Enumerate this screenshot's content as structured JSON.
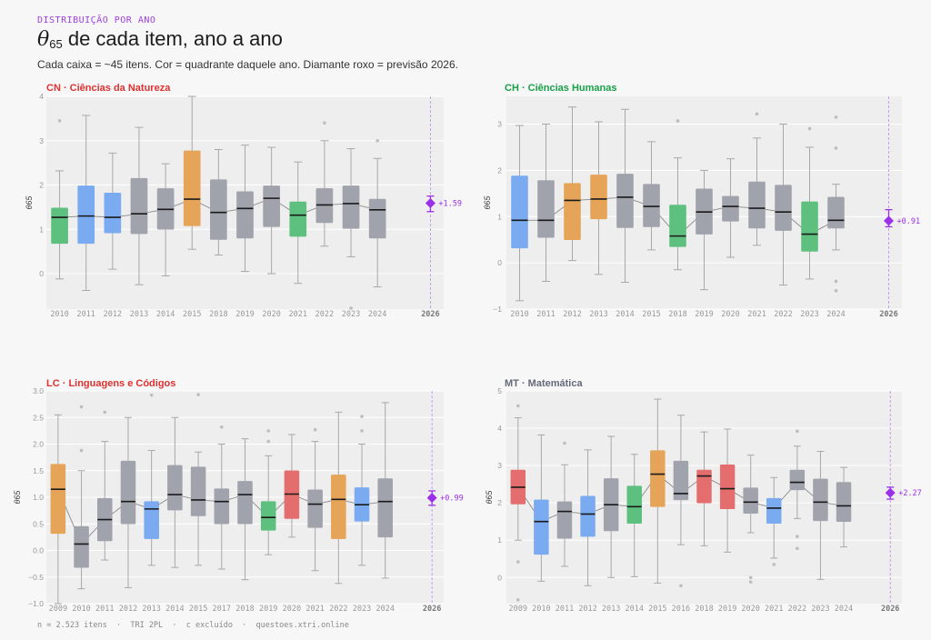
{
  "header": {
    "kicker": "DISTRIBUIÇÃO POR ANO",
    "title_symbol": "θ",
    "title_sub": "65",
    "title_rest": " de cada item, ano a ano",
    "subtitle": "Cada caixa = ~45 itens. Cor = quadrante daquele ano. Diamante roxo = previsão 2026."
  },
  "footer": "n = 2.523 itens  ·  TRI 2PL  ·  c excluído  ·  questoes.xtri.online",
  "colors": {
    "blue": "#7aaaf0",
    "orange": "#e5a458",
    "green": "#5ec07e",
    "red": "#e46e6e",
    "gray": "#a0a2ac",
    "prediction": "#9b30e8",
    "median": "#1a1a1a",
    "trend": "#8a8a8a"
  },
  "chart_data": [
    {
      "id": "cn",
      "type": "box",
      "title": "CN · Ciências da Natureza",
      "title_color": "#e03030",
      "ylabel": "θ65",
      "ylim": [
        -0.8,
        4.0
      ],
      "yticks": [
        0,
        1,
        2,
        3,
        4
      ],
      "ytick_labels": [
        "0",
        "1",
        "2",
        "3",
        "4"
      ],
      "prediction": {
        "x": "2026",
        "value": 1.59,
        "low": 1.4,
        "high": 1.75,
        "label": "+1.59"
      },
      "boxes": [
        {
          "x": "2010",
          "color": "green",
          "min": -0.12,
          "q1": 0.68,
          "median": 1.27,
          "q3": 1.48,
          "max": 2.32,
          "outliers": [
            3.45
          ]
        },
        {
          "x": "2011",
          "color": "blue",
          "min": -0.38,
          "q1": 0.68,
          "median": 1.3,
          "q3": 1.98,
          "max": 3.57,
          "outliers": []
        },
        {
          "x": "2012",
          "color": "blue",
          "min": 0.1,
          "q1": 0.92,
          "median": 1.27,
          "q3": 1.82,
          "max": 2.72,
          "outliers": []
        },
        {
          "x": "2013",
          "color": "gray",
          "min": -0.25,
          "q1": 0.9,
          "median": 1.35,
          "q3": 2.15,
          "max": 3.3,
          "outliers": []
        },
        {
          "x": "2014",
          "color": "gray",
          "min": -0.05,
          "q1": 1.0,
          "median": 1.45,
          "q3": 1.92,
          "max": 2.48,
          "outliers": []
        },
        {
          "x": "2015",
          "color": "orange",
          "min": 0.55,
          "q1": 1.08,
          "median": 1.68,
          "q3": 2.77,
          "max": 4.0,
          "outliers": []
        },
        {
          "x": "2018",
          "color": "gray",
          "min": 0.42,
          "q1": 0.77,
          "median": 1.38,
          "q3": 2.12,
          "max": 2.8,
          "outliers": []
        },
        {
          "x": "2019",
          "color": "gray",
          "min": 0.05,
          "q1": 0.8,
          "median": 1.47,
          "q3": 1.85,
          "max": 2.9,
          "outliers": []
        },
        {
          "x": "2020",
          "color": "gray",
          "min": 0.0,
          "q1": 1.06,
          "median": 1.7,
          "q3": 1.98,
          "max": 2.85,
          "outliers": []
        },
        {
          "x": "2021",
          "color": "green",
          "min": -0.22,
          "q1": 0.84,
          "median": 1.32,
          "q3": 1.62,
          "max": 2.52,
          "outliers": []
        },
        {
          "x": "2022",
          "color": "gray",
          "min": 0.62,
          "q1": 1.15,
          "median": 1.55,
          "q3": 1.92,
          "max": 3.0,
          "outliers": [
            3.4
          ]
        },
        {
          "x": "2023",
          "color": "gray",
          "min": 0.38,
          "q1": 1.02,
          "median": 1.58,
          "q3": 1.98,
          "max": 2.82,
          "outliers": [
            -0.78
          ]
        },
        {
          "x": "2024",
          "color": "gray",
          "min": -0.3,
          "q1": 0.8,
          "median": 1.44,
          "q3": 1.68,
          "max": 2.6,
          "outliers": [
            3.0
          ]
        }
      ]
    },
    {
      "id": "ch",
      "type": "box",
      "title": "CH · Ciências Humanas",
      "title_color": "#17a046",
      "ylabel": "θ65",
      "ylim": [
        -1.0,
        3.6
      ],
      "yticks": [
        -1,
        0,
        1,
        2,
        3
      ],
      "ytick_labels": [
        "−1",
        "0",
        "1",
        "2",
        "3"
      ],
      "prediction": {
        "x": "2026",
        "value": 0.91,
        "low": 0.78,
        "high": 1.15,
        "label": "+0.91"
      },
      "boxes": [
        {
          "x": "2010",
          "color": "blue",
          "min": -0.82,
          "q1": 0.32,
          "median": 0.92,
          "q3": 1.88,
          "max": 2.97,
          "outliers": []
        },
        {
          "x": "2011",
          "color": "gray",
          "min": -0.4,
          "q1": 0.55,
          "median": 0.92,
          "q3": 1.78,
          "max": 3.0,
          "outliers": []
        },
        {
          "x": "2012",
          "color": "orange",
          "min": 0.05,
          "q1": 0.5,
          "median": 1.35,
          "q3": 1.72,
          "max": 3.37,
          "outliers": []
        },
        {
          "x": "2013",
          "color": "orange",
          "min": -0.25,
          "q1": 0.95,
          "median": 1.38,
          "q3": 1.9,
          "max": 3.05,
          "outliers": []
        },
        {
          "x": "2014",
          "color": "gray",
          "min": -0.42,
          "q1": 0.76,
          "median": 1.42,
          "q3": 1.92,
          "max": 3.32,
          "outliers": []
        },
        {
          "x": "2015",
          "color": "gray",
          "min": 0.28,
          "q1": 0.78,
          "median": 1.22,
          "q3": 1.7,
          "max": 2.62,
          "outliers": []
        },
        {
          "x": "2018",
          "color": "green",
          "min": -0.15,
          "q1": 0.35,
          "median": 0.58,
          "q3": 1.25,
          "max": 2.27,
          "outliers": [
            3.07
          ]
        },
        {
          "x": "2019",
          "color": "gray",
          "min": -0.58,
          "q1": 0.62,
          "median": 1.1,
          "q3": 1.6,
          "max": 2.0,
          "outliers": []
        },
        {
          "x": "2020",
          "color": "gray",
          "min": 0.12,
          "q1": 0.9,
          "median": 1.22,
          "q3": 1.44,
          "max": 2.25,
          "outliers": []
        },
        {
          "x": "2021",
          "color": "gray",
          "min": 0.38,
          "q1": 0.75,
          "median": 1.18,
          "q3": 1.75,
          "max": 2.7,
          "outliers": [
            3.22
          ]
        },
        {
          "x": "2022",
          "color": "gray",
          "min": -0.48,
          "q1": 0.7,
          "median": 1.1,
          "q3": 1.68,
          "max": 3.0,
          "outliers": []
        },
        {
          "x": "2023",
          "color": "green",
          "min": -0.35,
          "q1": 0.25,
          "median": 0.62,
          "q3": 1.32,
          "max": 2.5,
          "outliers": [
            2.9
          ]
        },
        {
          "x": "2024",
          "color": "gray",
          "min": 0.28,
          "q1": 0.75,
          "median": 0.92,
          "q3": 1.42,
          "max": 1.7,
          "outliers": [
            3.15,
            2.48,
            -0.4,
            -0.6
          ]
        }
      ]
    },
    {
      "id": "lc",
      "type": "box",
      "title": "LC · Linguagens e Códigos",
      "title_color": "#e03030",
      "ylabel": "θ65",
      "ylim": [
        -1.0,
        3.0
      ],
      "yticks": [
        -1.0,
        -0.5,
        0.0,
        0.5,
        1.0,
        1.5,
        2.0,
        2.5,
        3.0
      ],
      "ytick_labels": [
        "−1.0",
        "−0.5",
        "0.0",
        "0.5",
        "1.0",
        "1.5",
        "2.0",
        "2.5",
        "3.0"
      ],
      "prediction": {
        "x": "2026",
        "value": 0.99,
        "low": 0.85,
        "high": 1.12,
        "label": "+0.99"
      },
      "boxes": [
        {
          "x": "2009",
          "color": "orange",
          "min": -1.0,
          "q1": 0.32,
          "median": 1.15,
          "q3": 1.62,
          "max": 2.55,
          "outliers": []
        },
        {
          "x": "2010",
          "color": "gray",
          "min": -0.72,
          "q1": -0.32,
          "median": 0.12,
          "q3": 0.45,
          "max": 1.5,
          "outliers": [
            2.7,
            1.88
          ]
        },
        {
          "x": "2011",
          "color": "gray",
          "min": -0.18,
          "q1": 0.18,
          "median": 0.58,
          "q3": 0.98,
          "max": 2.05,
          "outliers": [
            2.6
          ]
        },
        {
          "x": "2012",
          "color": "gray",
          "min": -0.7,
          "q1": 0.5,
          "median": 0.92,
          "q3": 1.68,
          "max": 2.5,
          "outliers": []
        },
        {
          "x": "2013",
          "color": "blue",
          "min": -0.28,
          "q1": 0.22,
          "median": 0.78,
          "q3": 0.92,
          "max": 1.88,
          "outliers": [
            2.92
          ]
        },
        {
          "x": "2014",
          "color": "gray",
          "min": -0.32,
          "q1": 0.76,
          "median": 1.05,
          "q3": 1.6,
          "max": 2.5,
          "outliers": []
        },
        {
          "x": "2015",
          "color": "gray",
          "min": -0.28,
          "q1": 0.65,
          "median": 0.95,
          "q3": 1.57,
          "max": 1.85,
          "outliers": [
            2.93
          ]
        },
        {
          "x": "2017",
          "color": "gray",
          "min": -0.35,
          "q1": 0.5,
          "median": 0.92,
          "q3": 1.16,
          "max": 2.0,
          "outliers": [
            2.32
          ]
        },
        {
          "x": "2018",
          "color": "gray",
          "min": -0.55,
          "q1": 0.5,
          "median": 1.05,
          "q3": 1.3,
          "max": 2.1,
          "outliers": []
        },
        {
          "x": "2019",
          "color": "green",
          "min": -0.08,
          "q1": 0.38,
          "median": 0.62,
          "q3": 0.92,
          "max": 1.78,
          "outliers": [
            2.25,
            2.05
          ]
        },
        {
          "x": "2020",
          "color": "red",
          "min": 0.25,
          "q1": 0.6,
          "median": 1.06,
          "q3": 1.5,
          "max": 2.18,
          "outliers": []
        },
        {
          "x": "2021",
          "color": "gray",
          "min": -0.38,
          "q1": 0.43,
          "median": 0.87,
          "q3": 1.14,
          "max": 2.05,
          "outliers": [
            2.27
          ]
        },
        {
          "x": "2022",
          "color": "orange",
          "min": -0.62,
          "q1": 0.22,
          "median": 0.96,
          "q3": 1.42,
          "max": 2.6,
          "outliers": []
        },
        {
          "x": "2023",
          "color": "blue",
          "min": -0.28,
          "q1": 0.55,
          "median": 0.86,
          "q3": 1.18,
          "max": 2.0,
          "outliers": [
            2.52,
            2.25
          ]
        },
        {
          "x": "2024",
          "color": "gray",
          "min": -0.52,
          "q1": 0.25,
          "median": 0.92,
          "q3": 1.35,
          "max": 2.78,
          "outliers": []
        }
      ]
    },
    {
      "id": "mt",
      "type": "box",
      "title": "MT · Matemática",
      "title_color": "#656a78",
      "ylabel": "θ65",
      "ylim": [
        -0.7,
        5.0
      ],
      "yticks": [
        0,
        1,
        2,
        3,
        4,
        5
      ],
      "ytick_labels": [
        "0",
        "1",
        "2",
        "3",
        "4",
        "5"
      ],
      "prediction": {
        "x": "2026",
        "value": 2.27,
        "low": 2.1,
        "high": 2.42,
        "label": "+2.27"
      },
      "boxes": [
        {
          "x": "2009",
          "color": "red",
          "min": 1.0,
          "q1": 1.97,
          "median": 2.42,
          "q3": 2.88,
          "max": 4.28,
          "outliers": [
            4.6,
            0.42,
            -0.6
          ]
        },
        {
          "x": "2010",
          "color": "blue",
          "min": -0.1,
          "q1": 0.62,
          "median": 1.5,
          "q3": 2.08,
          "max": 3.82,
          "outliers": []
        },
        {
          "x": "2011",
          "color": "gray",
          "min": 0.3,
          "q1": 1.05,
          "median": 1.77,
          "q3": 2.03,
          "max": 3.02,
          "outliers": [
            3.6
          ]
        },
        {
          "x": "2012",
          "color": "blue",
          "min": -0.22,
          "q1": 1.1,
          "median": 1.7,
          "q3": 2.18,
          "max": 3.42,
          "outliers": []
        },
        {
          "x": "2013",
          "color": "gray",
          "min": 0.0,
          "q1": 1.25,
          "median": 1.95,
          "q3": 2.65,
          "max": 3.78,
          "outliers": []
        },
        {
          "x": "2014",
          "color": "green",
          "min": 0.02,
          "q1": 1.45,
          "median": 1.9,
          "q3": 2.45,
          "max": 3.3,
          "outliers": []
        },
        {
          "x": "2015",
          "color": "orange",
          "min": -0.15,
          "q1": 1.9,
          "median": 2.77,
          "q3": 3.4,
          "max": 4.78,
          "outliers": []
        },
        {
          "x": "2016",
          "color": "gray",
          "min": 0.88,
          "q1": 2.08,
          "median": 2.25,
          "q3": 3.12,
          "max": 4.35,
          "outliers": [
            -0.22
          ]
        },
        {
          "x": "2018",
          "color": "red",
          "min": 0.85,
          "q1": 2.0,
          "median": 2.72,
          "q3": 2.88,
          "max": 3.9,
          "outliers": []
        },
        {
          "x": "2019",
          "color": "red",
          "min": 0.68,
          "q1": 1.84,
          "median": 2.38,
          "q3": 3.02,
          "max": 3.98,
          "outliers": []
        },
        {
          "x": "2020",
          "color": "gray",
          "min": 1.2,
          "q1": 1.72,
          "median": 2.02,
          "q3": 2.4,
          "max": 3.28,
          "outliers": [
            0.0,
            -0.12
          ]
        },
        {
          "x": "2021",
          "color": "blue",
          "min": 0.52,
          "q1": 1.45,
          "median": 1.86,
          "q3": 2.12,
          "max": 2.68,
          "outliers": [
            0.35
          ]
        },
        {
          "x": "2022",
          "color": "gray",
          "min": 1.58,
          "q1": 2.35,
          "median": 2.55,
          "q3": 2.88,
          "max": 3.52,
          "outliers": [
            3.92,
            1.1,
            0.78
          ]
        },
        {
          "x": "2023",
          "color": "gray",
          "min": -0.05,
          "q1": 1.52,
          "median": 2.02,
          "q3": 2.64,
          "max": 3.38,
          "outliers": []
        },
        {
          "x": "2024",
          "color": "gray",
          "min": 0.82,
          "q1": 1.5,
          "median": 1.92,
          "q3": 2.55,
          "max": 2.95,
          "outliers": []
        }
      ]
    }
  ]
}
